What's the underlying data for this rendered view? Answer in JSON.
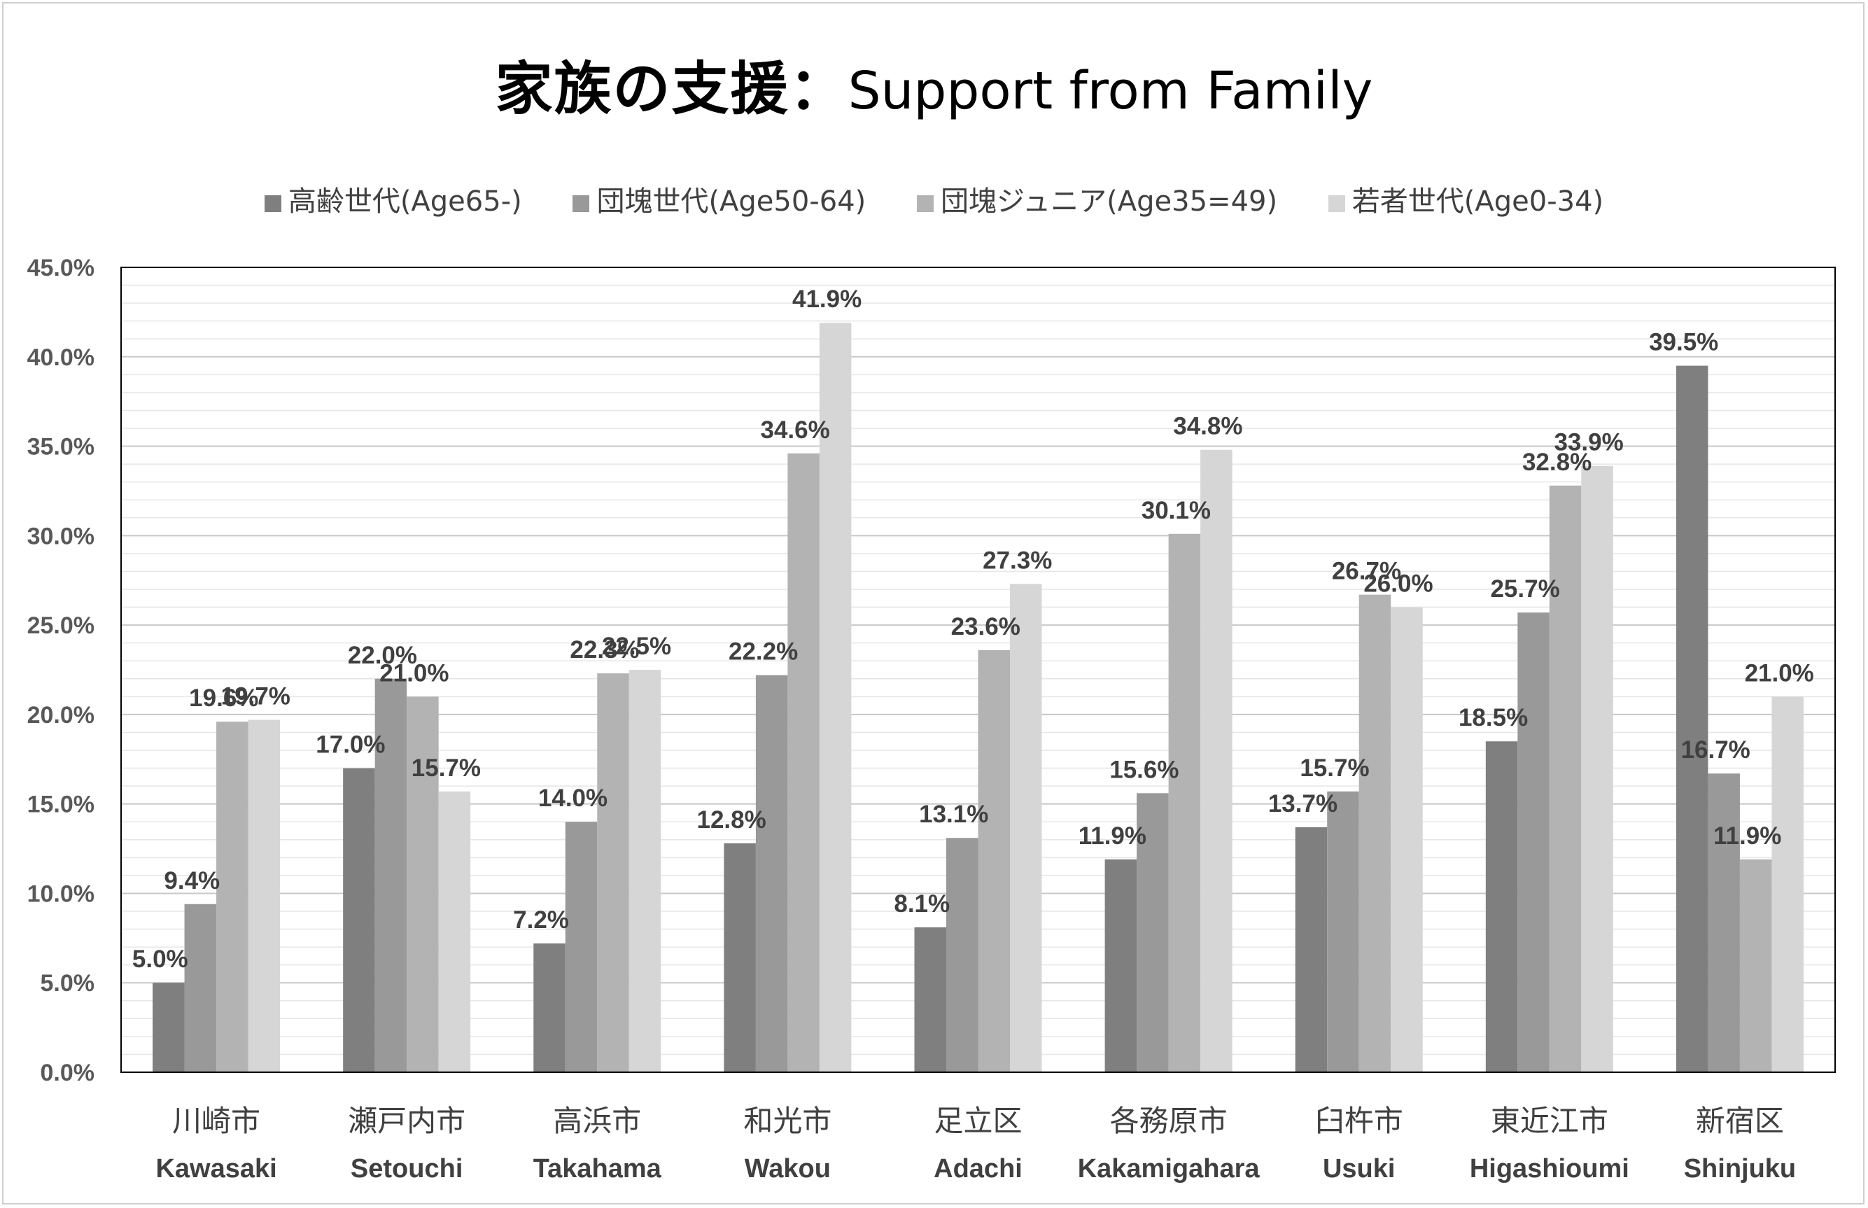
{
  "chart_data": {
    "type": "bar",
    "title_jp": "家族の支援",
    "title_sep": "：",
    "title_en": "Support from Family",
    "categories": [
      "川崎市",
      "瀬戸内市",
      "高浜市",
      "和光市",
      "足立区",
      "各務原市",
      "臼杵市",
      "東近江市",
      "新宿区"
    ],
    "categories_en": [
      "Kawasaki",
      "Setouchi",
      "Takahama",
      "Wakou",
      "Adachi",
      "Kakamigahara",
      "Usuki",
      "Higashioumi",
      "Shinjuku"
    ],
    "series": [
      {
        "name": "高齢世代(Age65-)",
        "color": "#7f7f7f",
        "values": [
          5.0,
          17.0,
          7.2,
          12.8,
          8.1,
          11.9,
          13.7,
          18.5,
          39.5
        ]
      },
      {
        "name": "団塊世代(Age50-64)",
        "color": "#999999",
        "values": [
          9.4,
          22.0,
          14.0,
          22.2,
          13.1,
          15.6,
          15.7,
          25.7,
          16.7
        ]
      },
      {
        "name": "団塊ジュニア(Age35=49)",
        "color": "#b3b3b3",
        "values": [
          19.6,
          21.0,
          22.3,
          34.6,
          23.6,
          30.1,
          26.7,
          32.8,
          11.9
        ]
      },
      {
        "name": "若者世代(Age0-34)",
        "color": "#d6d6d6",
        "values": [
          19.7,
          15.7,
          22.5,
          41.9,
          27.3,
          34.8,
          26.0,
          33.9,
          21.0
        ]
      }
    ],
    "ylim": [
      0,
      45
    ],
    "yticks": [
      0,
      5,
      10,
      15,
      20,
      25,
      30,
      35,
      40,
      45
    ],
    "value_format": "percent_1dp",
    "legend_position": "top",
    "grid": true
  }
}
